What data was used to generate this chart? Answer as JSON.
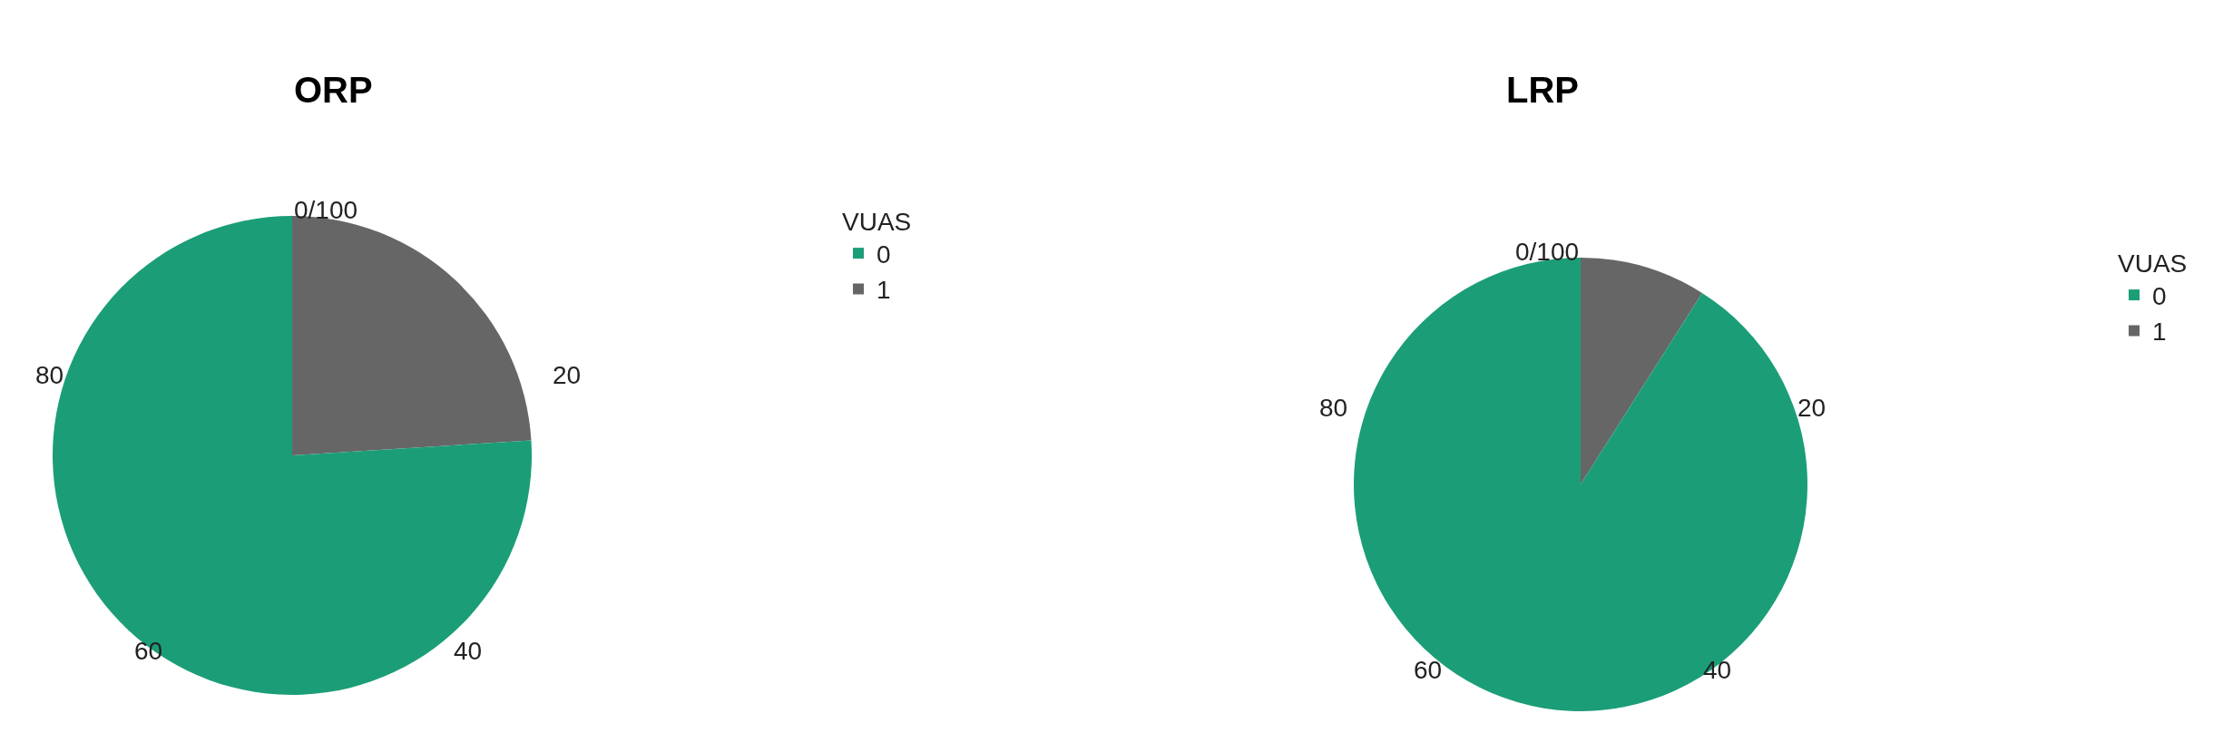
{
  "chart_data": [
    {
      "type": "pie",
      "title": "ORP",
      "legend_title": "VUAS",
      "legend": "right",
      "categories": [
        "0",
        "1"
      ],
      "values": [
        76,
        24
      ],
      "colors": [
        "#1b9e77",
        "#666666"
      ],
      "annotations": [
        "0/100",
        "20",
        "40",
        "60",
        "80"
      ]
    },
    {
      "type": "pie",
      "title": "LRP",
      "legend_title": "VUAS",
      "legend": "right",
      "categories": [
        "0",
        "1"
      ],
      "values": [
        91,
        9
      ],
      "colors": [
        "#1b9e77",
        "#666666"
      ],
      "annotations": [
        "0/100",
        "20",
        "40",
        "60",
        "80"
      ]
    }
  ]
}
